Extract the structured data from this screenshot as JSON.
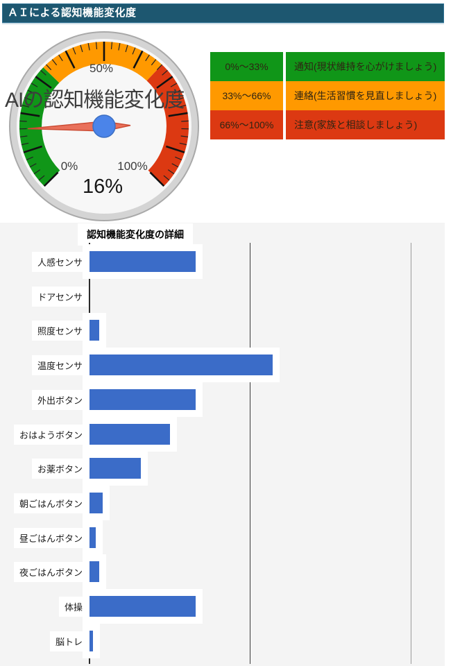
{
  "header": {
    "title": "ＡＩによる認知機能変化度"
  },
  "gauge": {
    "overlay_title": "AIの認知機能変化度",
    "min_label": "0%",
    "mid_label": "50%",
    "max_label": "100%",
    "value_label": "16%",
    "value_percent": 16,
    "zones": [
      {
        "from": 0,
        "to": 33,
        "color": "#109618"
      },
      {
        "from": 33,
        "to": 66,
        "color": "#FF9900"
      },
      {
        "from": 66,
        "to": 100,
        "color": "#DC3912"
      }
    ],
    "needle_color": "#E9715B",
    "needle_edge_color": "#CC4B33",
    "pivot_color": "#4B84E9"
  },
  "legend": {
    "rows": [
      {
        "range": "0%～33%",
        "label": "通知(現状維持を心がけましょう)",
        "color": "#109618"
      },
      {
        "range": "33%～66%",
        "label": "連絡(生活習慣を見直しましょう)",
        "color": "#FF9900"
      },
      {
        "range": "66%～100%",
        "label": "注意(家族と相談しましょう)",
        "color": "#DC3912"
      }
    ]
  },
  "chart_data": {
    "type": "bar",
    "orientation": "horizontal",
    "title": "認知機能変化度の詳細",
    "categories": [
      "人感センサ",
      "ドアセンサ",
      "照度センサ",
      "温度センサ",
      "外出ボタン",
      "おはようボタン",
      "お薬ボタン",
      "朝ごはんボタン",
      "昼ごはんボタン",
      "夜ごはんボタン",
      "体操",
      "脳トレ"
    ],
    "values": [
      33,
      0,
      3,
      57,
      33,
      25,
      16,
      4,
      2,
      3,
      33,
      1
    ],
    "xlim": [
      0,
      110
    ],
    "gridlines_x": [
      0,
      50,
      100
    ],
    "x_axis_labels_visible": false,
    "bar_color": "#3B6CC8",
    "background_color": "#F4F4F4"
  }
}
